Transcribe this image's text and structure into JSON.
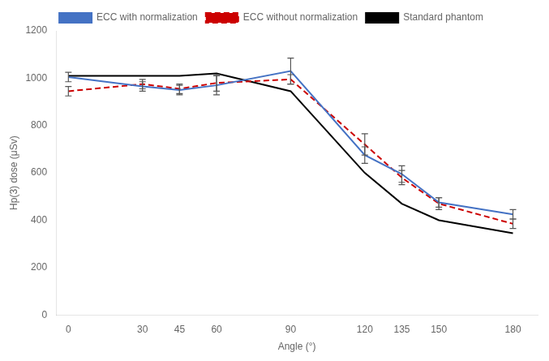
{
  "chart_data": {
    "type": "line",
    "xlabel": "Angle (°)",
    "ylabel": "Hp(3) dose (μSv)",
    "x": [
      0,
      30,
      45,
      60,
      90,
      120,
      135,
      150,
      180
    ],
    "series": [
      {
        "name": "ECC with normalization",
        "color": "#4472C4",
        "line_style": "solid",
        "values": [
          1005,
          965,
          950,
          970,
          1030,
          675,
          595,
          475,
          425
        ],
        "errors": [
          20,
          20,
          20,
          40,
          55,
          35,
          35,
          20,
          20
        ]
      },
      {
        "name": "ECC without normalization",
        "color": "#CC0000",
        "line_style": "dashed",
        "values": [
          945,
          975,
          955,
          980,
          995,
          720,
          580,
          470,
          385
        ],
        "errors": [
          20,
          20,
          20,
          35,
          20,
          45,
          30,
          25,
          20
        ]
      },
      {
        "name": "Standard phantom",
        "color": "#000000",
        "line_style": "solid",
        "values": [
          1010,
          1010,
          1010,
          1020,
          945,
          600,
          470,
          400,
          345
        ]
      }
    ],
    "xlim": [
      -5,
      190
    ],
    "xticks": [
      0,
      30,
      45,
      60,
      90,
      120,
      135,
      150,
      180
    ],
    "ylim": [
      0,
      1200
    ],
    "yticks": [
      0,
      200,
      400,
      600,
      800,
      1000,
      1200
    ],
    "grid": false,
    "legend": "top"
  }
}
